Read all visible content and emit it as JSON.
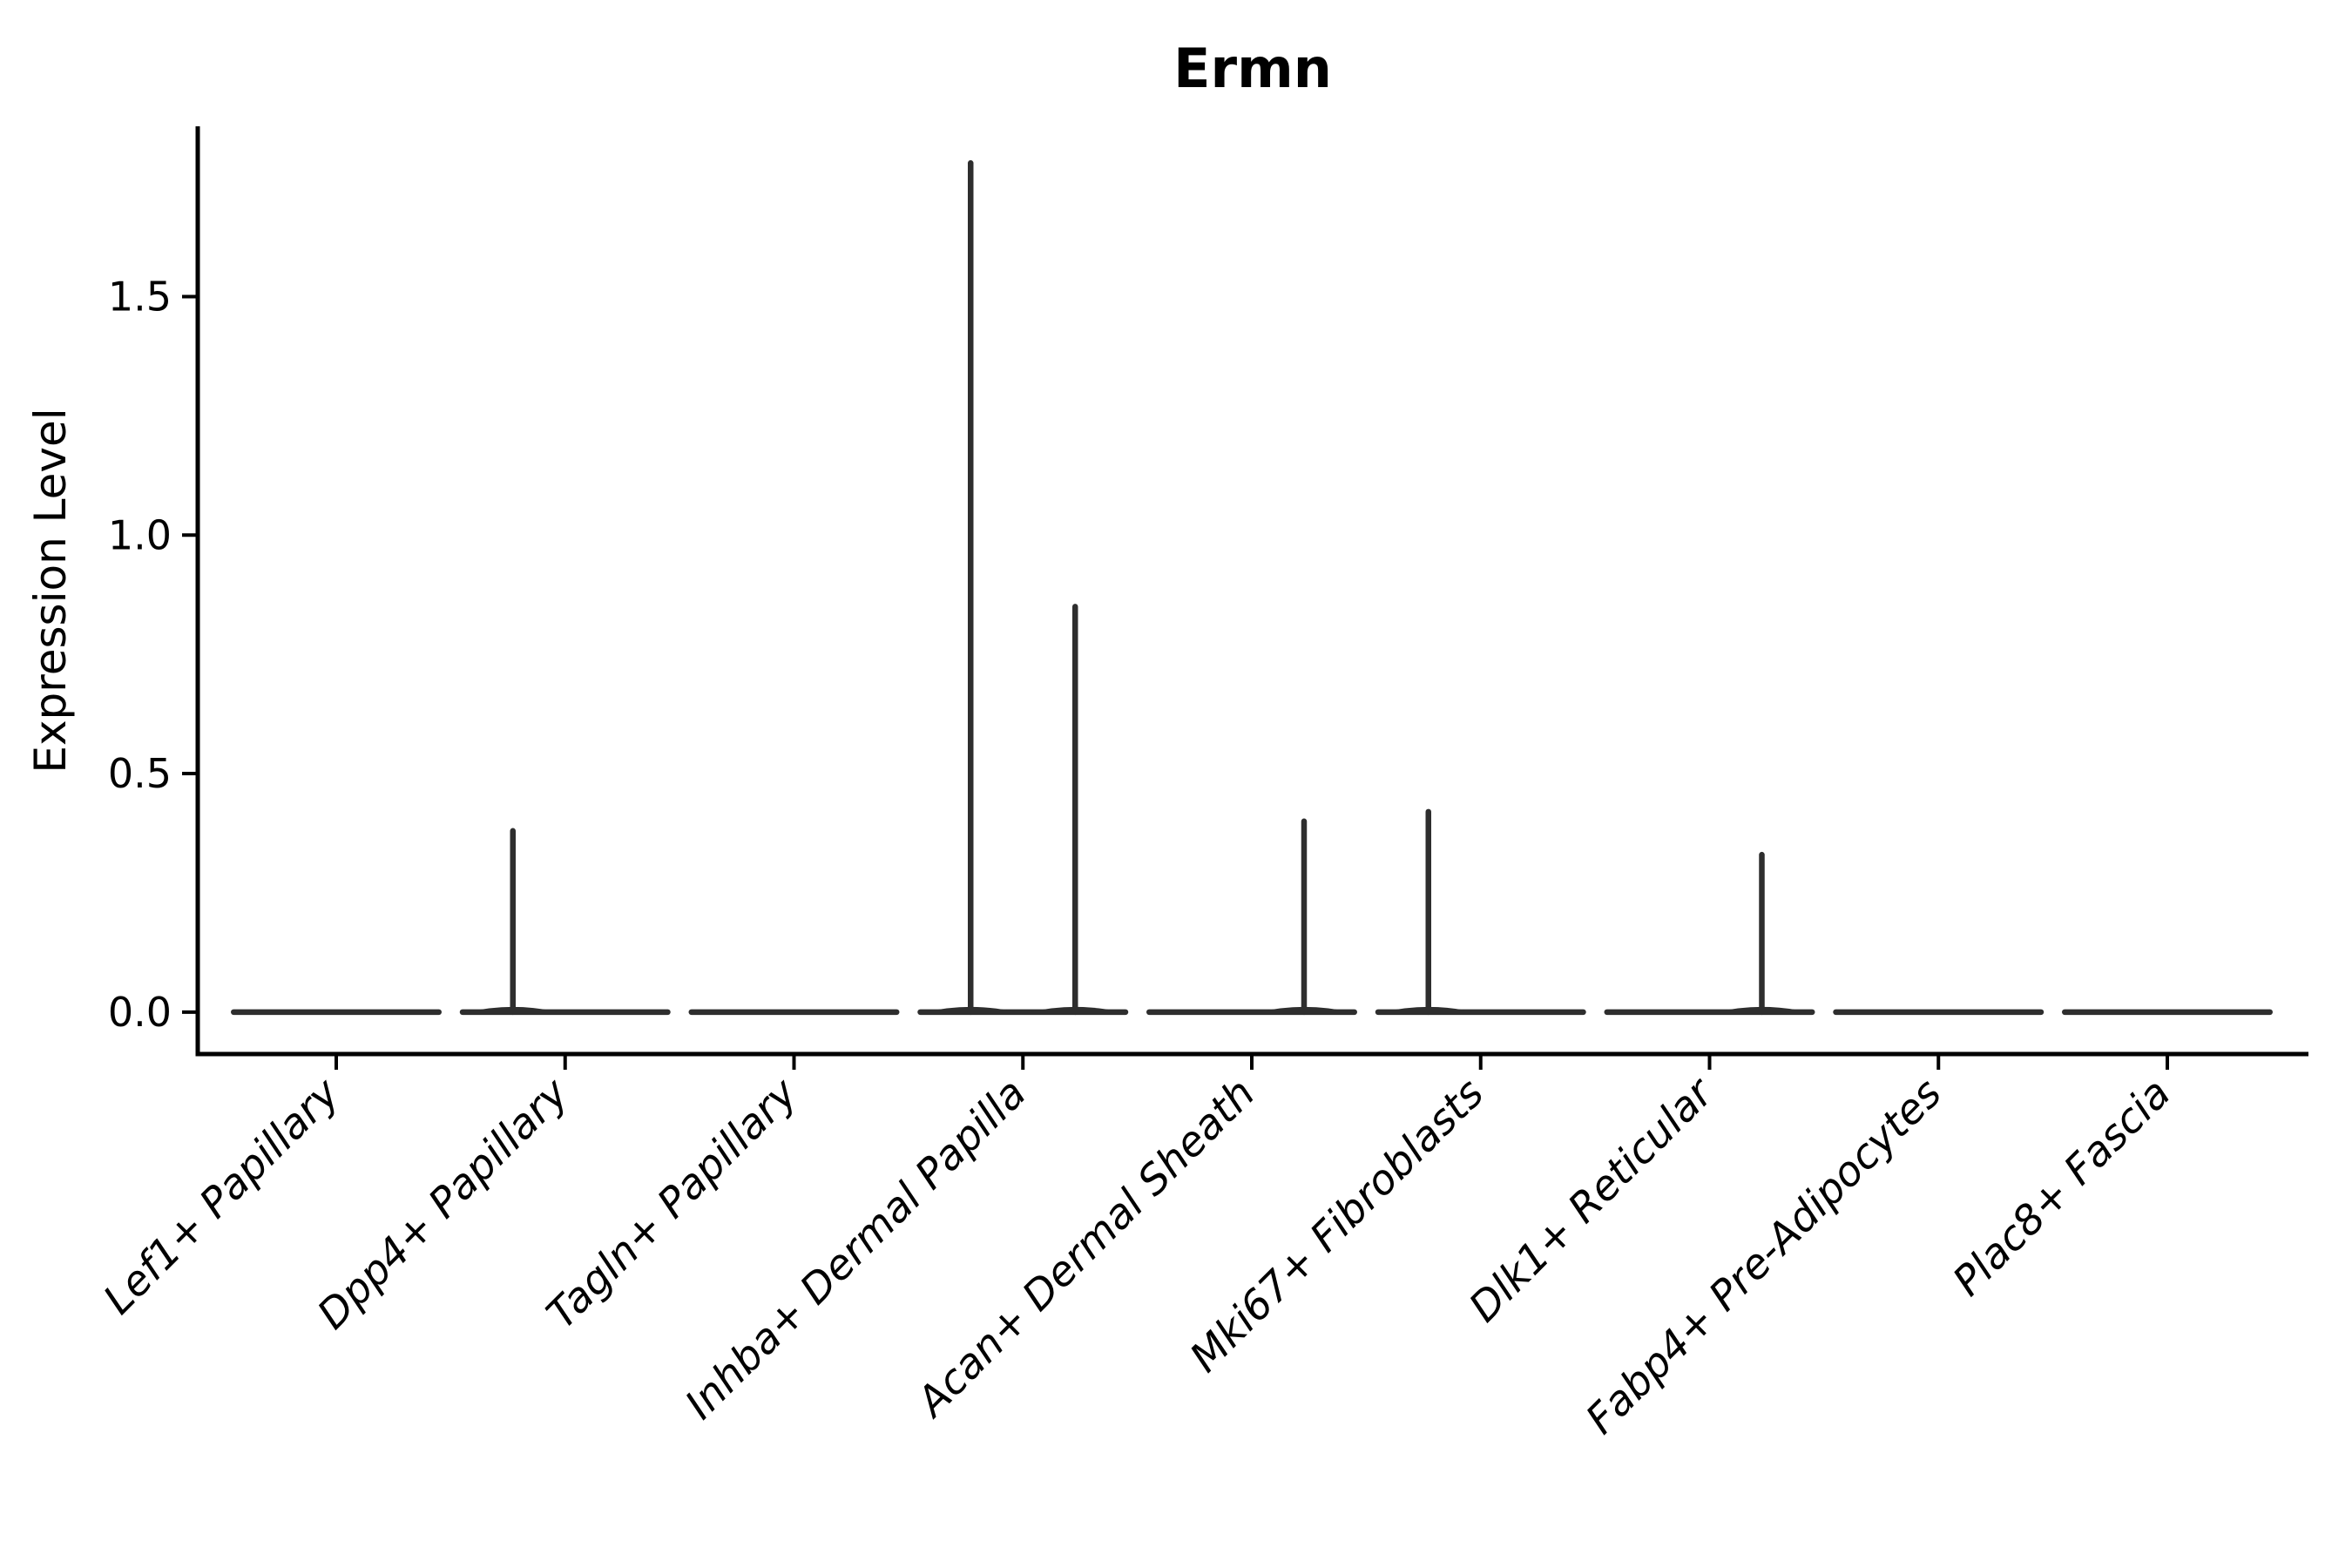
{
  "chart_data": {
    "type": "violin",
    "title": "Ermn",
    "ylabel": "Expression Level",
    "xlabel": "",
    "ytick_labels": [
      "0.0",
      "0.5",
      "1.0",
      "1.5"
    ],
    "ytick_values": [
      0.0,
      0.5,
      1.0,
      1.5
    ],
    "ylim": [
      -0.088,
      1.857
    ],
    "grid": false,
    "legend_position": "none",
    "categories": [
      "Lef1+ Papillary",
      "Dpp4+ Papillary",
      "Tagln+ Papillary",
      "Inhba+ Dermal Papilla",
      "Acan+ Dermal Sheath",
      "Mki67+ Fibroblasts",
      "Dlk1+ Reticular",
      "Fabp4+ Pre-Adipocytes",
      "Plac8+ Fascia"
    ],
    "violins": [
      {
        "category": "Lef1+ Papillary",
        "baseline_value": 0.0,
        "spikes": []
      },
      {
        "category": "Dpp4+ Papillary",
        "baseline_value": 0.0,
        "spikes": [
          {
            "side": "left",
            "max": 0.38
          }
        ]
      },
      {
        "category": "Tagln+ Papillary",
        "baseline_value": 0.0,
        "spikes": []
      },
      {
        "category": "Inhba+ Dermal Papilla",
        "baseline_value": 0.0,
        "spikes": [
          {
            "side": "left",
            "max": 1.78
          },
          {
            "side": "right",
            "max": 0.85
          }
        ]
      },
      {
        "category": "Acan+ Dermal Sheath",
        "baseline_value": 0.0,
        "spikes": [
          {
            "side": "right",
            "max": 0.4
          }
        ]
      },
      {
        "category": "Mki67+ Fibroblasts",
        "baseline_value": 0.0,
        "spikes": [
          {
            "side": "left",
            "max": 0.42
          }
        ]
      },
      {
        "category": "Dlk1+ Reticular",
        "baseline_value": 0.0,
        "spikes": [
          {
            "side": "right",
            "max": 0.33
          }
        ]
      },
      {
        "category": "Fabp4+ Pre-Adipocytes",
        "baseline_value": 0.0,
        "spikes": []
      },
      {
        "category": "Plac8+ Fascia",
        "baseline_value": 0.0,
        "spikes": []
      }
    ],
    "colors": {
      "violin_line": "#2e2e2e",
      "axis": "#000000",
      "text": "#000000",
      "background": "#ffffff"
    }
  }
}
